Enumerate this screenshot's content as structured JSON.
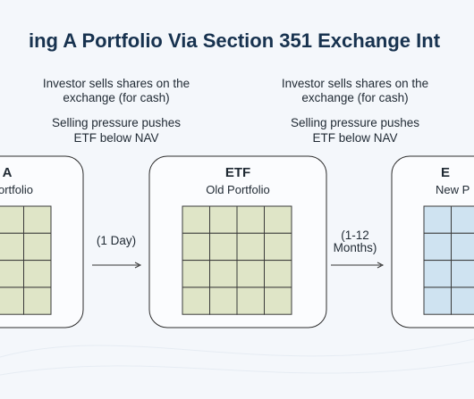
{
  "header": {
    "title": "ing A Portfolio Via Section 351 Exchange Int"
  },
  "notes": [
    {
      "lines": [
        "Investor sells shares on the",
        "exchange (for cash)"
      ],
      "effect": [
        "Selling pressure pushes",
        "ETF below NAV"
      ]
    },
    {
      "lines": [
        "Investor sells shares on the",
        "exchange (for cash)"
      ],
      "effect": [
        "Selling pressure pushes",
        "ETF below NAV"
      ]
    }
  ],
  "boxes": [
    {
      "title": "A",
      "subtitle": "ortfolio"
    },
    {
      "title": "ETF",
      "subtitle": "Old Portfolio"
    },
    {
      "title": "E",
      "subtitle": "New P"
    }
  ],
  "transitions": [
    {
      "label": [
        "(1 Day)"
      ]
    },
    {
      "label": [
        "(1-12",
        "Months)"
      ]
    }
  ]
}
